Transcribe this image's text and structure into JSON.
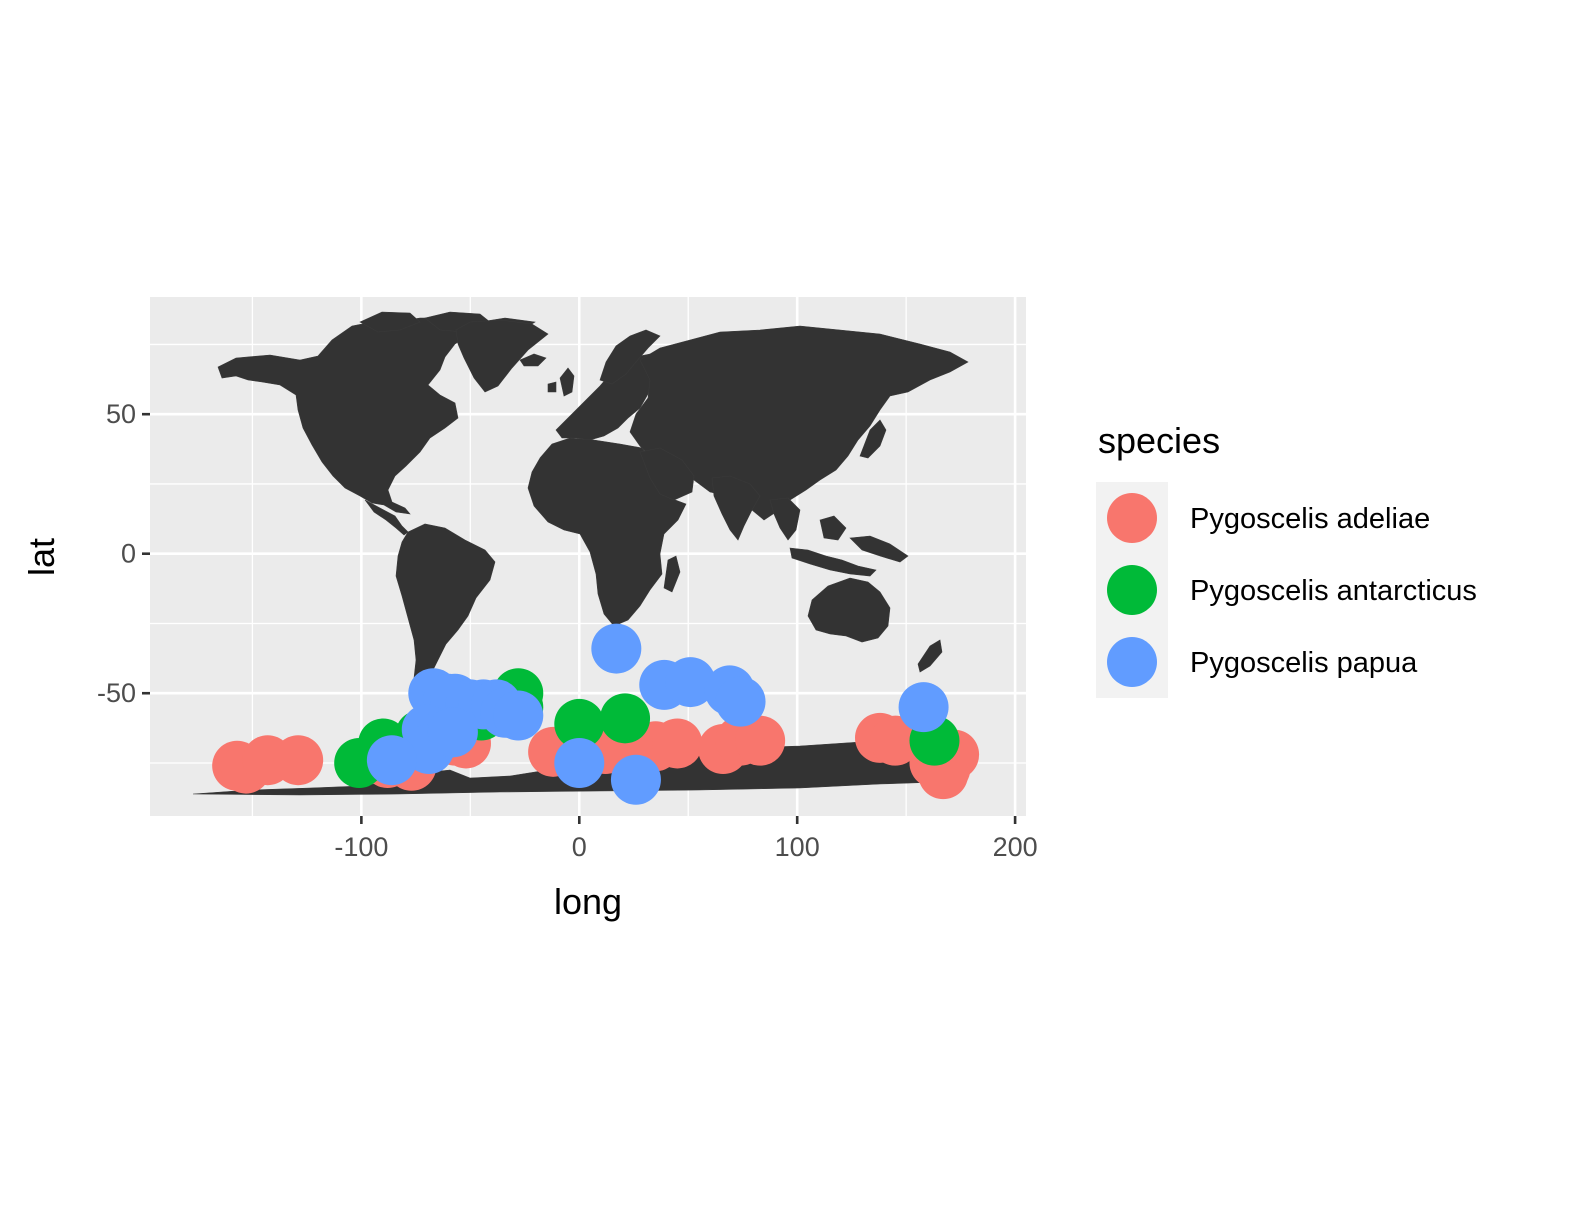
{
  "chart_data": {
    "type": "scatter",
    "base_layer": "world map (country outlines, filled dark grey)",
    "xlabel": "long",
    "ylabel": "lat",
    "xlim": [
      -197,
      205
    ],
    "ylim": [
      -94,
      92
    ],
    "x_ticks": [
      -100,
      0,
      100,
      200
    ],
    "x_tick_labels": [
      "-100",
      "0",
      "100",
      "200"
    ],
    "y_ticks": [
      -50,
      0,
      50
    ],
    "y_tick_labels": [
      "-50",
      "0",
      "50"
    ],
    "grid": true,
    "legend": {
      "title": "species",
      "position": "right"
    },
    "colors": {
      "panel_background": "#ebebeb",
      "grid": "#ffffff",
      "land": "#333333",
      "legend_key_background": "#f2f2f2"
    },
    "series": [
      {
        "name": "Pygoscelis adeliae",
        "color": "#F8766D",
        "points": [
          [
            -157,
            -76
          ],
          [
            -153,
            -77
          ],
          [
            -143,
            -74
          ],
          [
            -129,
            -74
          ],
          [
            -88,
            -75
          ],
          [
            -77,
            -76
          ],
          [
            -57,
            -67
          ],
          [
            -52,
            -68
          ],
          [
            -12,
            -71
          ],
          [
            3,
            -70
          ],
          [
            12,
            -70
          ],
          [
            18,
            -68
          ],
          [
            35,
            -69
          ],
          [
            45,
            -68
          ],
          [
            66,
            -70
          ],
          [
            74,
            -67
          ],
          [
            83,
            -67
          ],
          [
            138,
            -66
          ],
          [
            145,
            -67
          ],
          [
            163,
            -75
          ],
          [
            168,
            -77
          ],
          [
            172,
            -72
          ],
          [
            167,
            -79
          ]
        ]
      },
      {
        "name": "Pygoscelis antarcticus",
        "color": "#00BA38",
        "points": [
          [
            -101,
            -75
          ],
          [
            -90,
            -68
          ],
          [
            -73,
            -65
          ],
          [
            -45,
            -58
          ],
          [
            -28,
            -50
          ],
          [
            -28,
            -55
          ],
          [
            0,
            -61
          ],
          [
            21,
            -59
          ],
          [
            163,
            -67
          ]
        ]
      },
      {
        "name": "Pygoscelis papua",
        "color": "#619CFF",
        "points": [
          [
            17,
            -34
          ],
          [
            -67,
            -50
          ],
          [
            -63,
            -55
          ],
          [
            -60,
            -52
          ],
          [
            -57,
            -52
          ],
          [
            -50,
            -54
          ],
          [
            -44,
            -54
          ],
          [
            -38,
            -54
          ],
          [
            -34,
            -57
          ],
          [
            -28,
            -58
          ],
          [
            -70,
            -63
          ],
          [
            -65,
            -66
          ],
          [
            -69,
            -70
          ],
          [
            -86,
            -74
          ],
          [
            -58,
            -64
          ],
          [
            0,
            -75
          ],
          [
            26,
            -81
          ],
          [
            39,
            -47
          ],
          [
            51,
            -46
          ],
          [
            69,
            -49
          ],
          [
            74,
            -53
          ],
          [
            158,
            -55
          ]
        ]
      }
    ]
  }
}
